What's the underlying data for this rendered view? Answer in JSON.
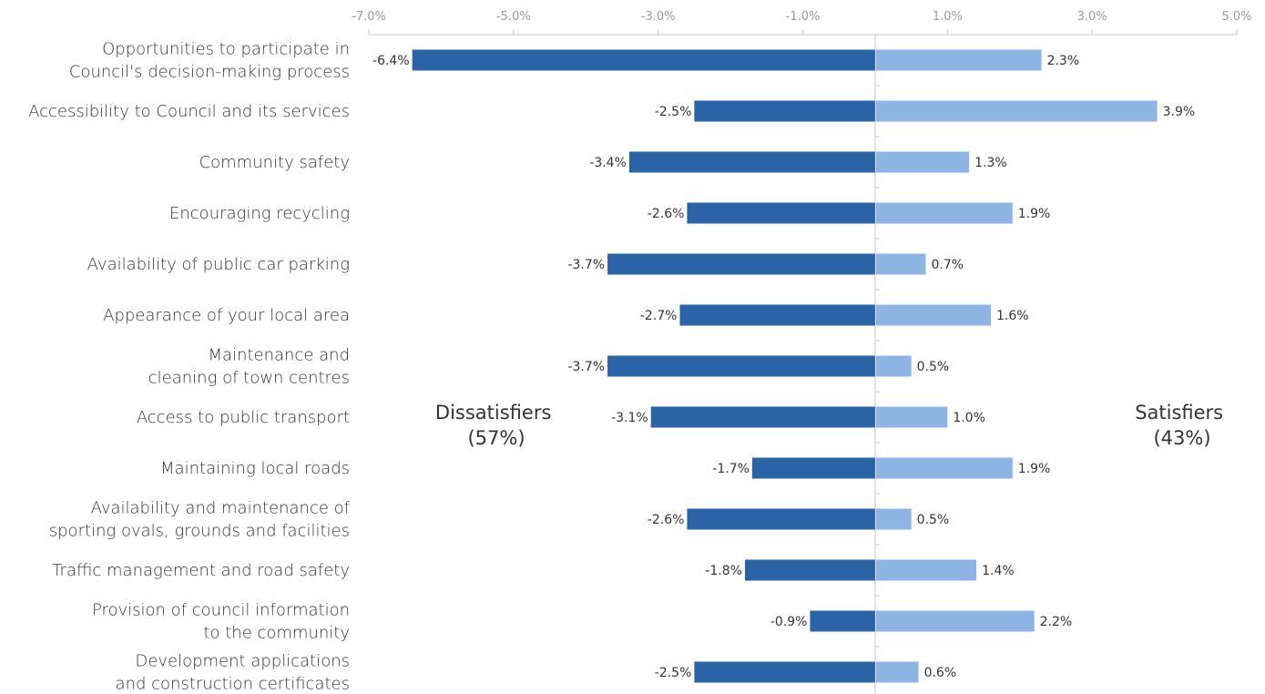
{
  "chart_data": {
    "type": "bar",
    "orientation": "horizontal-diverging",
    "xlim": [
      -7,
      5
    ],
    "x_ticks": [
      "-7.0%",
      "-5.0%",
      "-3.0%",
      "-1.0%",
      "1.0%",
      "3.0%",
      "5.0%"
    ],
    "x_tick_values": [
      -7,
      -5,
      -3,
      -1,
      1,
      3,
      5
    ],
    "categories": [
      [
        "Opportunities to participate in",
        "Council's decision-making process"
      ],
      [
        "Accessibility to Council and its services"
      ],
      [
        "Community safety"
      ],
      [
        "Encouraging recycling"
      ],
      [
        "Availability of public car parking"
      ],
      [
        "Appearance of your local area"
      ],
      [
        "Maintenance and",
        "cleaning of town centres"
      ],
      [
        "Access to public transport"
      ],
      [
        "Maintaining local roads"
      ],
      [
        "Availability and maintenance of",
        "sporting ovals, grounds and facilities"
      ],
      [
        "Traffic management and road safety"
      ],
      [
        "Provision of council information",
        "to the community"
      ],
      [
        "Development applications",
        "and construction certificates"
      ]
    ],
    "series": [
      {
        "key": "dissatisfiers",
        "color": "#2b63a7",
        "values": [
          -6.4,
          -2.5,
          -3.4,
          -2.6,
          -3.7,
          -2.7,
          -3.7,
          -3.1,
          -1.7,
          -2.6,
          -1.8,
          -0.9,
          -2.5
        ],
        "labels": [
          "-6.4%",
          "-2.5%",
          "-3.4%",
          "-2.6%",
          "-3.7%",
          "-2.7%",
          "-3.7%",
          "-3.1%",
          "-1.7%",
          "-2.6%",
          "-1.8%",
          "-0.9%",
          "-2.5%"
        ]
      },
      {
        "key": "satisfiers",
        "color": "#8eb4e3",
        "values": [
          2.3,
          3.9,
          1.3,
          1.9,
          0.7,
          1.6,
          0.5,
          1.0,
          1.9,
          0.5,
          1.4,
          2.2,
          0.6
        ],
        "labels": [
          "2.3%",
          "3.9%",
          "1.3%",
          "1.9%",
          "0.7%",
          "1.6%",
          "0.5%",
          "1.0%",
          "1.9%",
          "0.5%",
          "1.4%",
          "2.2%",
          "0.6%"
        ]
      }
    ],
    "annotations": {
      "dissatisfiers": [
        "Dissatisfiers",
        "(57%)"
      ],
      "satisfiers": [
        "Satisfiers",
        "(43%)"
      ]
    },
    "axis_color": "#c8c8c8",
    "grid": false,
    "legend": "none"
  }
}
